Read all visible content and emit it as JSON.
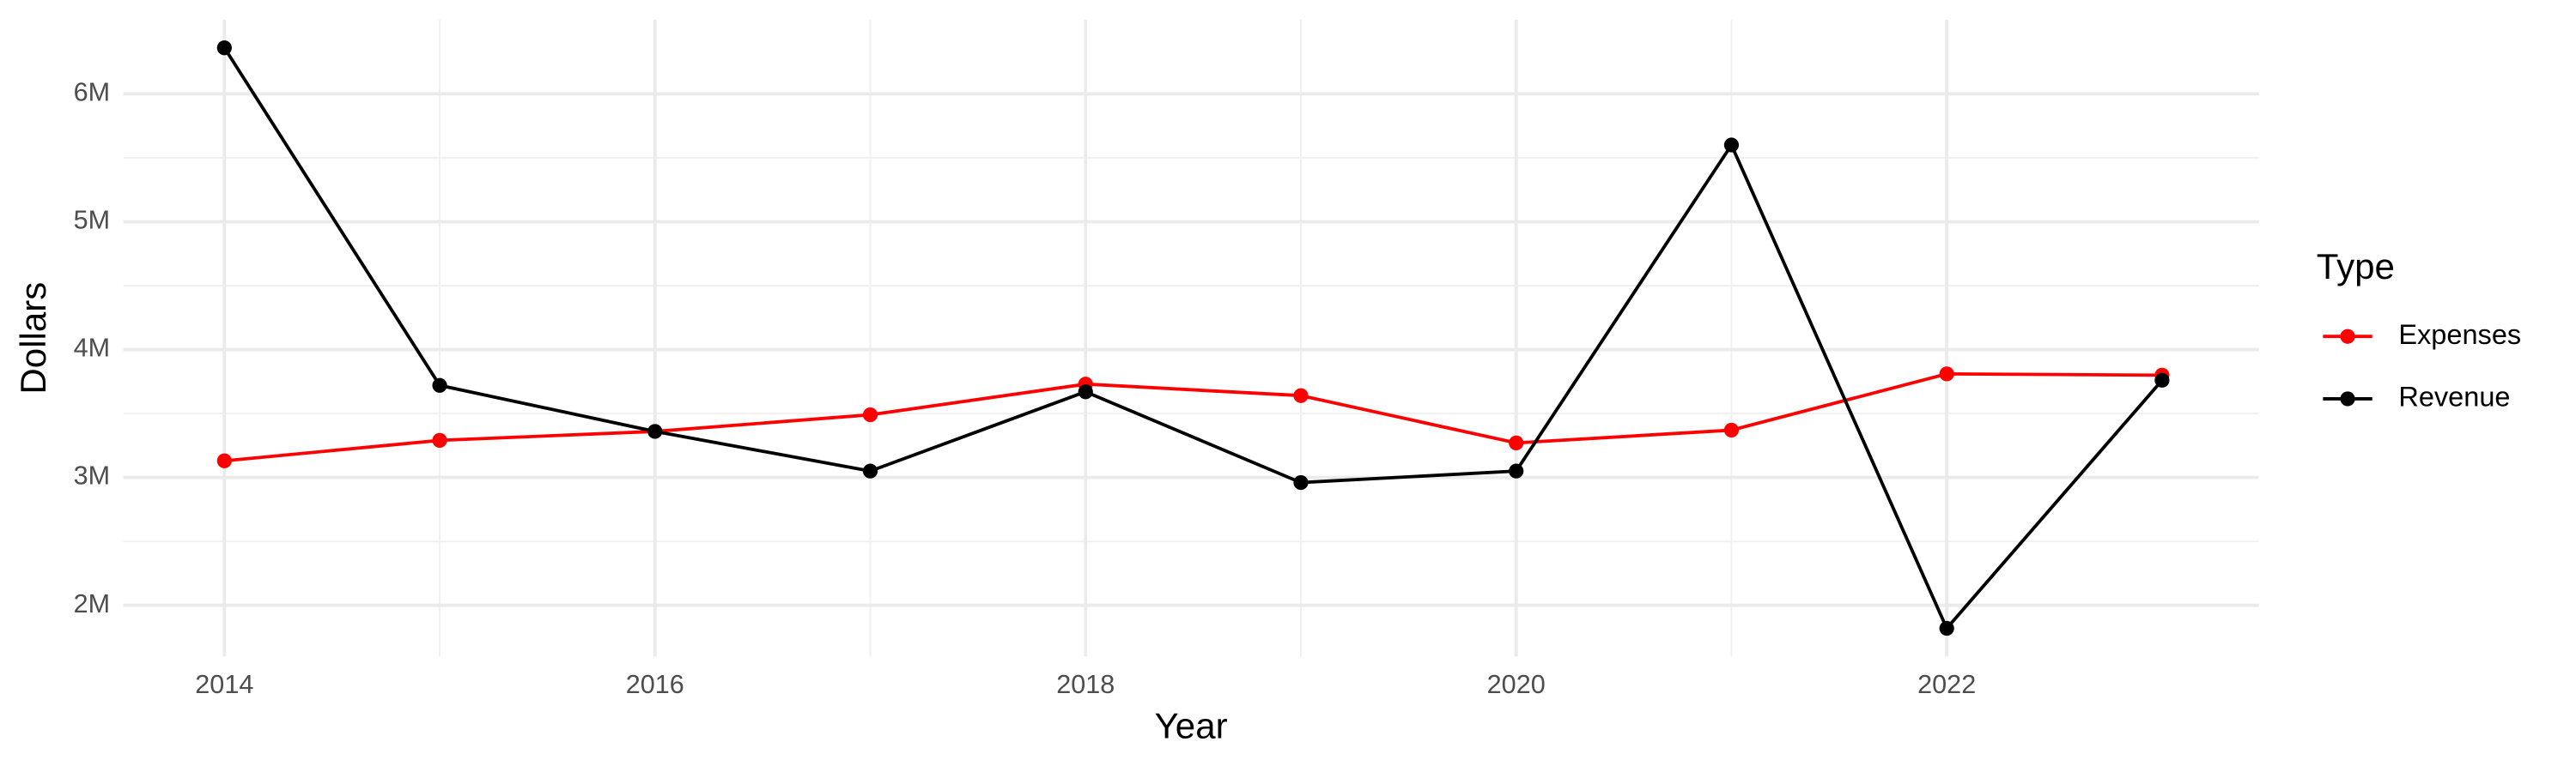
{
  "chart_data": {
    "type": "line",
    "x_label": "Year",
    "y_label": "Dollars",
    "legend_title": "Type",
    "legend_position": "right",
    "grid": true,
    "x": [
      2014,
      2015,
      2016,
      2017,
      2018,
      2019,
      2020,
      2021,
      2022,
      2023
    ],
    "series": [
      {
        "name": "Expenses",
        "color": "#ff0000",
        "values": [
          3130000,
          3290000,
          3360000,
          3490000,
          3730000,
          3640000,
          3270000,
          3370000,
          3810000,
          3800000
        ]
      },
      {
        "name": "Revenue",
        "color": "#000000",
        "values": [
          6360000,
          3720000,
          3360000,
          3050000,
          3670000,
          2960000,
          3050000,
          5600000,
          1820000,
          3760000
        ]
      }
    ],
    "xlim": [
      2013.53,
      2023.45
    ],
    "xticks": [
      2014,
      2016,
      2018,
      2020,
      2022
    ],
    "ylim": [
      1600000,
      6580000
    ],
    "yticks": [
      {
        "value": 2000000,
        "label": "2M"
      },
      {
        "value": 3000000,
        "label": "3M"
      },
      {
        "value": 4000000,
        "label": "4M"
      },
      {
        "value": 5000000,
        "label": "5M"
      },
      {
        "value": 6000000,
        "label": "6M"
      }
    ]
  }
}
